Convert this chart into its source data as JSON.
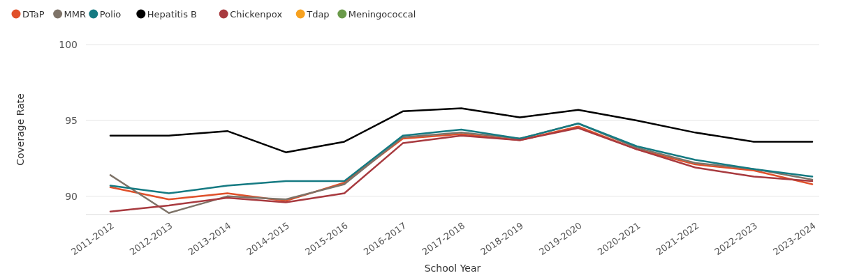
{
  "chart_data": {
    "type": "line",
    "xlabel": "School Year",
    "ylabel": "Coverage Rate",
    "categories": [
      "2011-2012",
      "2012-2013",
      "2013-2014",
      "2014-2015",
      "2015-2016",
      "2016-2017",
      "2017-2018",
      "2018-2019",
      "2019-2020",
      "2020-2021",
      "2021-2022",
      "2022-2023",
      "2023-2024"
    ],
    "ylim": [
      88.8,
      100
    ],
    "yticks": [
      90,
      95,
      100
    ],
    "grid": "y",
    "legend": "top left",
    "marker": "none",
    "line_style": "solid",
    "series": [
      {
        "name": "DTaP",
        "color": "#e0502a",
        "values": [
          90.6,
          89.8,
          90.2,
          89.7,
          90.9,
          93.8,
          94.1,
          93.7,
          94.6,
          93.1,
          92.1,
          91.7,
          90.8
        ]
      },
      {
        "name": "MMR",
        "color": "#7e7368",
        "values": [
          91.4,
          88.9,
          90.0,
          89.8,
          90.8,
          93.9,
          94.2,
          93.8,
          94.8,
          93.2,
          92.2,
          91.8,
          91.1
        ]
      },
      {
        "name": "Polio",
        "color": "#157a82",
        "values": [
          90.7,
          90.2,
          90.7,
          91.0,
          91.0,
          94.0,
          94.4,
          93.8,
          94.8,
          93.3,
          92.4,
          91.8,
          91.3
        ]
      },
      {
        "name": "Hepatitis B",
        "color": "#000000",
        "values": [
          94.0,
          94.0,
          94.3,
          92.9,
          93.6,
          95.6,
          95.8,
          95.2,
          95.7,
          95.0,
          94.2,
          93.6,
          93.6
        ]
      },
      {
        "name": "Chickenpox",
        "color": "#a83a3f",
        "values": [
          89.0,
          89.4,
          89.9,
          89.6,
          90.2,
          93.5,
          94.0,
          93.7,
          94.5,
          93.1,
          91.9,
          91.3,
          91.0
        ]
      },
      {
        "name": "Tdap",
        "color": "#f7a11e",
        "values": [
          null,
          null,
          null,
          null,
          null,
          null,
          null,
          null,
          null,
          null,
          null,
          null,
          null
        ]
      },
      {
        "name": "Meningococcal",
        "color": "#6a9a4a",
        "values": [
          null,
          null,
          null,
          null,
          null,
          null,
          null,
          null,
          null,
          null,
          null,
          null,
          null
        ]
      }
    ]
  }
}
